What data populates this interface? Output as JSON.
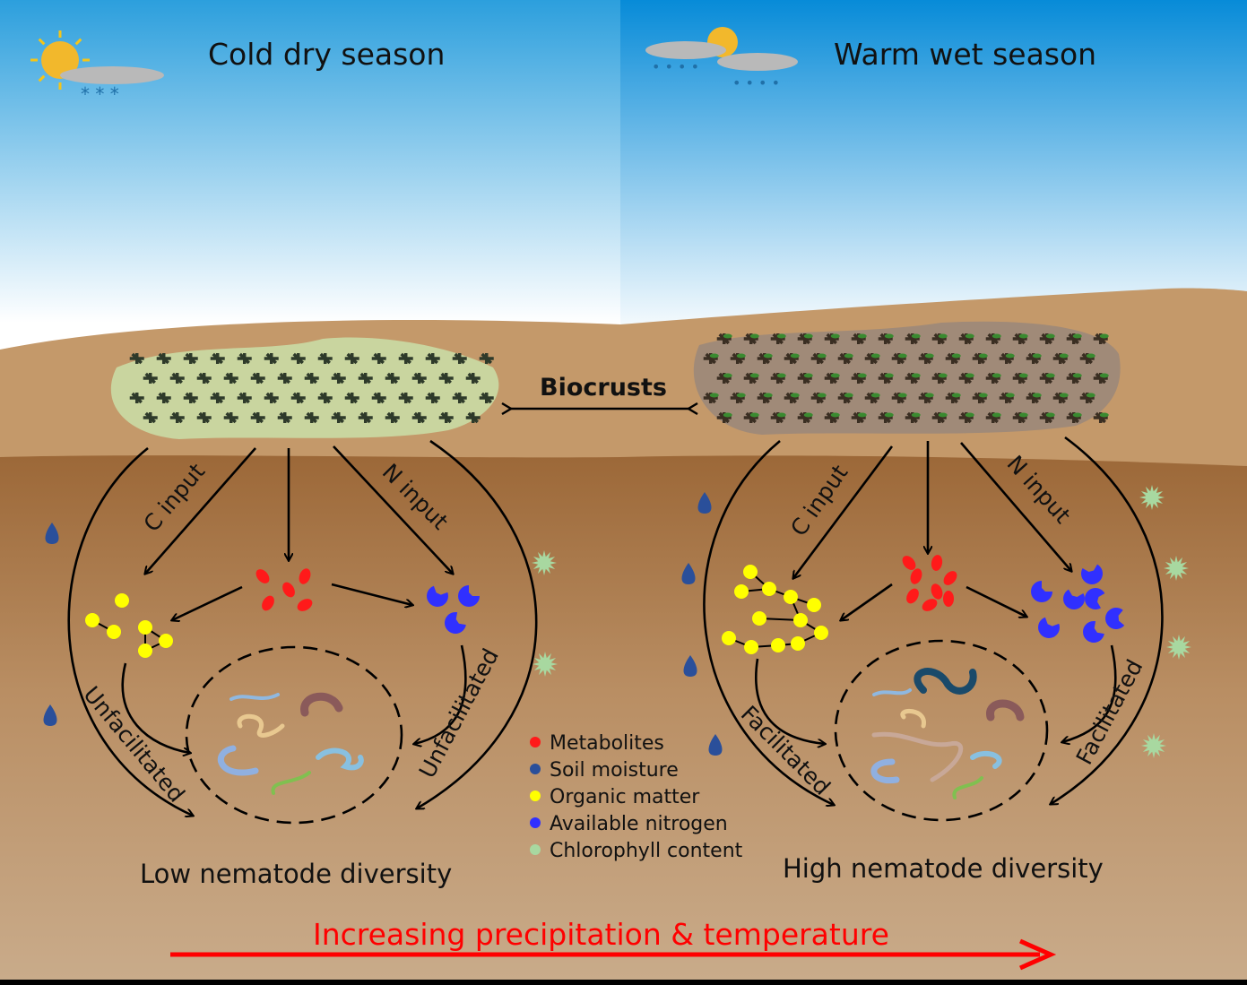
{
  "seasons": {
    "left": "Cold dry season",
    "right": "Warm wet season"
  },
  "biocrusts_label": "Biocrusts",
  "left_panel": {
    "c_input": "C input",
    "n_input": "N input",
    "outer_left": "Unfacilitated",
    "outer_right": "Unfacilitated",
    "result": "Low nematode diversity"
  },
  "right_panel": {
    "c_input": "C input",
    "n_input": "N input",
    "outer_left": "Facilitated",
    "outer_right": "Facilitated",
    "result": "High nematode diversity"
  },
  "legend": [
    {
      "label": "Metabolites",
      "color": "#ff1a1a",
      "icon": "metabolite-icon"
    },
    {
      "label": "Soil moisture",
      "color": "#2a4f9a",
      "icon": "droplet-icon"
    },
    {
      "label": "Organic matter",
      "color": "#ffff00",
      "icon": "organic-matter-icon"
    },
    {
      "label": "Available nitrogen",
      "color": "#3030ff",
      "icon": "nitrogen-icon"
    },
    {
      "label": "Chlorophyll content",
      "color": "#a8d8a0",
      "icon": "chlorophyll-icon"
    }
  ],
  "gradient_label": "Increasing precipitation & temperature",
  "colors": {
    "gradient_arrow": "#ff0000",
    "left_crust": "#c9d59f",
    "right_crust": "#a08a78"
  }
}
